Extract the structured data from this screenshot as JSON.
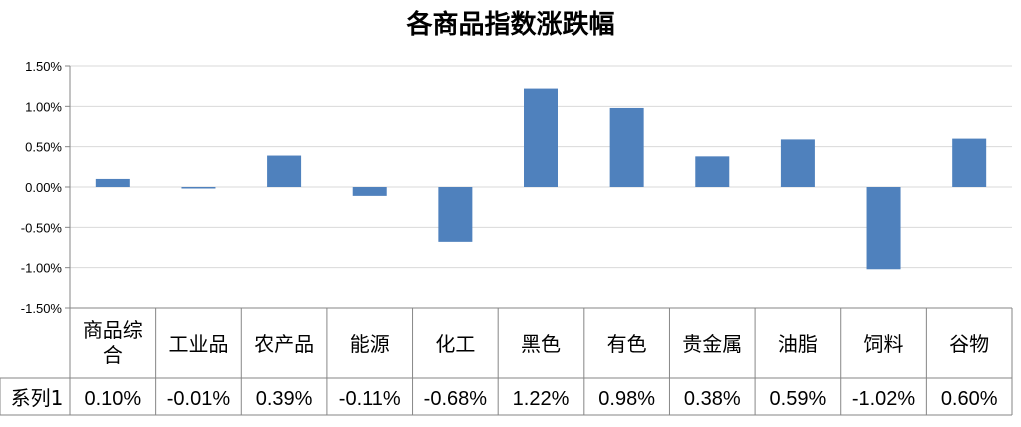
{
  "chart_data": {
    "type": "bar",
    "title": "各商品指数涨跌幅",
    "categories": [
      "商品综合",
      "工业品",
      "农产品",
      "能源",
      "化工",
      "黑色",
      "有色",
      "贵金属",
      "油脂",
      "饲料",
      "谷物"
    ],
    "series": [
      {
        "name": "系列1",
        "values": [
          0.1,
          -0.01,
          0.39,
          -0.11,
          -0.68,
          1.22,
          0.98,
          0.38,
          0.59,
          -1.02,
          0.6
        ],
        "labels": [
          "0.10%",
          "-0.01%",
          "0.39%",
          "-0.11%",
          "-0.68%",
          "1.22%",
          "0.98%",
          "0.38%",
          "0.59%",
          "-1.02%",
          "0.60%"
        ],
        "color": "#4F81BD"
      }
    ],
    "ylim": [
      -1.5,
      1.5
    ],
    "yticks": [
      1.5,
      1.0,
      0.5,
      0.0,
      -0.5,
      -1.0,
      -1.5
    ],
    "ytick_labels": [
      "1.50%",
      "1.00%",
      "0.50%",
      "0.00%",
      "-0.50%",
      "-1.00%",
      "-1.50%"
    ],
    "xlabel": "",
    "ylabel": "",
    "grid": true,
    "legend": "data-table"
  }
}
